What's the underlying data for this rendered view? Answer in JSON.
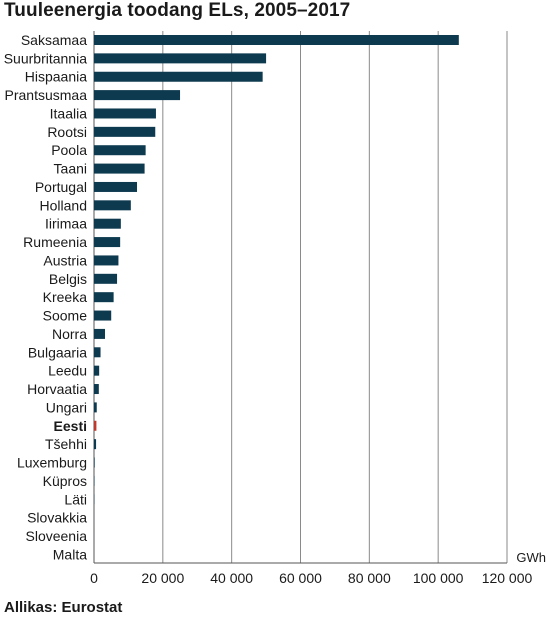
{
  "chart_data": {
    "type": "bar",
    "orientation": "horizontal",
    "title": "Tuuleenergia toodang ELs, 2005–2017",
    "unit_label": "GWh",
    "source": "Allikas: Eurostat",
    "categories": [
      "Saksamaa",
      "Suurbritannia",
      "Hispaania",
      "Prantsusmaa",
      "Itaalia",
      "Rootsi",
      "Poola",
      "Taani",
      "Portugal",
      "Holland",
      "Iirimaa",
      "Rumeenia",
      "Austria",
      "Belgis",
      "Kreeka",
      "Soome",
      "Norra",
      "Bulgaaria",
      "Leedu",
      "Horvaatia",
      "Ungari",
      "Eesti",
      "Tšehhi",
      "Luxemburg",
      "Küpros",
      "Läti",
      "Slovakkia",
      "Sloveenia",
      "Malta"
    ],
    "values": [
      106000,
      50000,
      49000,
      25000,
      18000,
      17800,
      15000,
      14700,
      12500,
      10700,
      7800,
      7600,
      7100,
      6700,
      5700,
      5000,
      3200,
      1900,
      1500,
      1400,
      800,
      700,
      600,
      200,
      150,
      100,
      10,
      10,
      0
    ],
    "highlight": "Eesti",
    "highlight_color": "#c0392b",
    "bar_color": "#0d3a4f",
    "grid_color": "#8a8a8a",
    "xlim": [
      0,
      120000
    ],
    "xticks": [
      0,
      20000,
      40000,
      60000,
      80000,
      100000,
      120000
    ],
    "xtick_labels": [
      "0",
      "20 000",
      "40 000",
      "60 000",
      "80 000",
      "100 000",
      "120 000"
    ],
    "grid": true
  }
}
